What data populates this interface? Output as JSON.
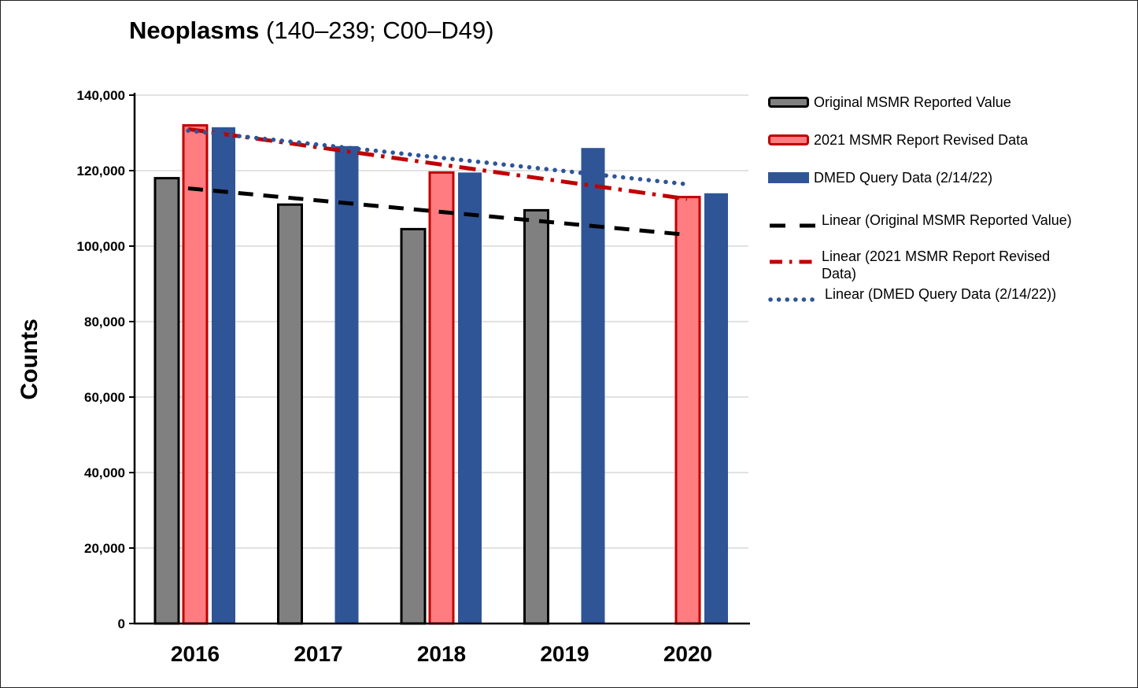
{
  "title": {
    "bold": "Neoplasms",
    "rest": " (140–239; C00–D49)"
  },
  "y_axis": {
    "label": "Counts",
    "ticks": [
      "0",
      "20,000",
      "40,000",
      "60,000",
      "80,000",
      "100,000",
      "120,000",
      "140,000"
    ]
  },
  "chart_data": {
    "type": "bar",
    "title": "Neoplasms (140–239; C00–D49)",
    "categories": [
      "2016",
      "2017",
      "2018",
      "2019",
      "2020"
    ],
    "series": [
      {
        "name": "Original MSMR Reported Value",
        "color": "#808080",
        "border": "#000000",
        "values": [
          118000,
          111000,
          104500,
          109500,
          null
        ]
      },
      {
        "name": "2021 MSMR Report Revised Data",
        "color": "#FF7C80",
        "border": "#C00000",
        "values": [
          132000,
          null,
          119500,
          null,
          113000
        ]
      },
      {
        "name": "DMED Query Data (2/14/22)",
        "color": "#2F5597",
        "border": null,
        "values": [
          131500,
          126500,
          119500,
          126000,
          114000
        ]
      }
    ],
    "trendlines": [
      {
        "name": "Linear (Original MSMR Reported Value)",
        "style": "dashed",
        "color": "#000000",
        "start": 115300,
        "end": 103000
      },
      {
        "name": "Linear (2021 MSMR Report Revised Data)",
        "style": "dashdot",
        "color": "#C00000",
        "start": 131000,
        "end": 112500
      },
      {
        "name": "Linear (DMED Query Data (2/14/22))",
        "style": "dotted",
        "color": "#2F5597",
        "start": 130600,
        "end": 116400
      }
    ],
    "xlabel": "",
    "ylabel": "Counts",
    "ylim": [
      0,
      140000
    ],
    "y_step": 20000,
    "grid": true,
    "legend_position": "right"
  },
  "legend": {
    "items": [
      {
        "label": "Original MSMR Reported Value",
        "swatch": "bar",
        "color": "#808080",
        "border": "#000000"
      },
      {
        "label": "2021 MSMR Report Revised Data",
        "swatch": "bar",
        "color": "#FF7C80",
        "border": "#C00000"
      },
      {
        "label": "DMED Query Data (2/14/22)",
        "swatch": "bar",
        "color": "#2F5597",
        "border": "#2F5597"
      },
      {
        "label": "Linear (Original MSMR Reported Value)",
        "swatch": "dashed-line",
        "color": "#000000"
      },
      {
        "label": "Linear (2021 MSMR Report Revised Data)",
        "lines": [
          "Linear (2021 MSMR Report Revised",
          "Data)"
        ],
        "swatch": "dashdot-line",
        "color": "#C00000"
      },
      {
        "label": "Linear (DMED Query Data (2/14/22))",
        "swatch": "dotted-line",
        "color": "#2F5597"
      }
    ]
  },
  "colors": {
    "gray_fill": "#808080",
    "gray_border": "#000000",
    "red_fill": "#FF7C80",
    "red_border": "#C00000",
    "blue": "#2F5597",
    "gridline": "#D9D9D9",
    "axis": "#000000"
  }
}
